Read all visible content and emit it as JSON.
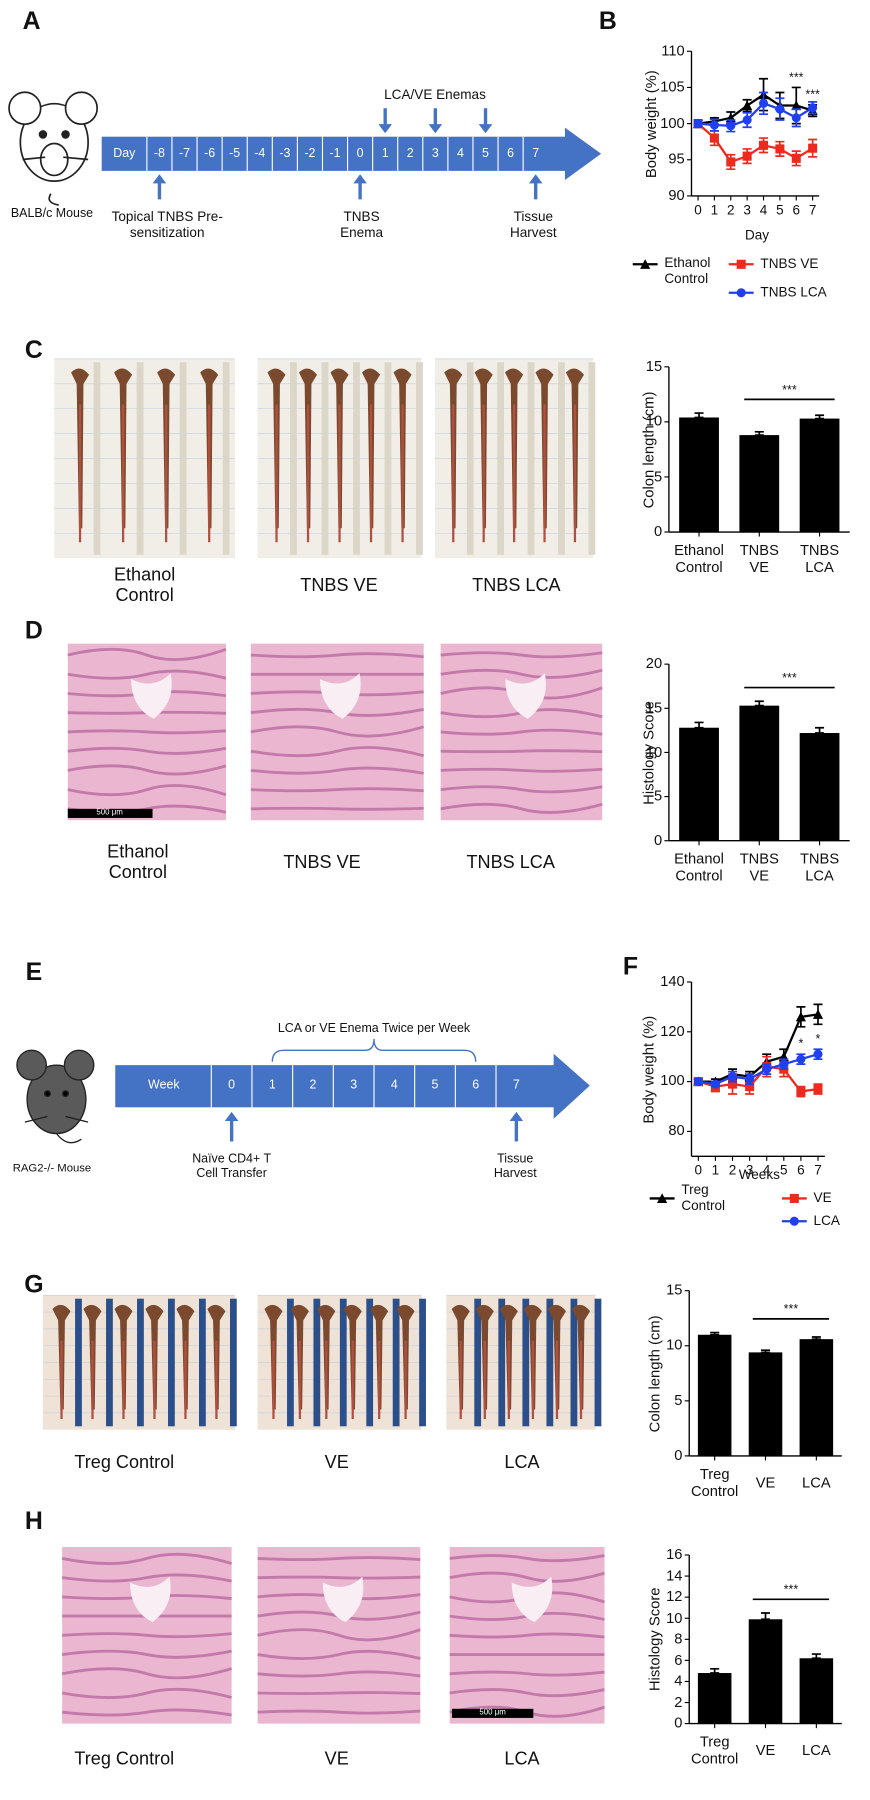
{
  "panel_labels": [
    "A",
    "B",
    "C",
    "D",
    "E",
    "F",
    "G",
    "H"
  ],
  "timeline_a": {
    "mouse": "BALB/c  Mouse",
    "cells": [
      "Day",
      "-8",
      "-7",
      "-6",
      "-5",
      "-4",
      "-3",
      "-2",
      "-1",
      "0",
      "1",
      "2",
      "3",
      "4",
      "5",
      "6",
      "7"
    ],
    "top_label": "LCA/VE  Enemas",
    "bottom_labels": [
      "Topical TNBS Pre-sensitization",
      "TNBS Enema",
      "Tissue Harvest"
    ]
  },
  "timeline_e": {
    "mouse": "RAG2-/- Mouse",
    "cells": [
      "Week",
      "0",
      "1",
      "2",
      "3",
      "4",
      "5",
      "6",
      "7"
    ],
    "bracket_label": "LCA or VE Enema Twice per Week",
    "bottom_labels": [
      "Naïve CD4+ T Cell Transfer",
      "Tissue Harvest"
    ]
  },
  "photos_c": {
    "captions": [
      "Ethanol Control",
      "TNBS VE",
      "TNBS LCA"
    ]
  },
  "photos_d": {
    "captions": [
      "Ethanol Control",
      "TNBS VE",
      "TNBS LCA"
    ],
    "scale_bar": "500 μm"
  },
  "photos_g": {
    "captions": [
      "Treg Control",
      "VE",
      "LCA"
    ]
  },
  "photos_h": {
    "captions": [
      "Treg Control",
      "VE",
      "LCA"
    ],
    "scale_bar": "500 μm"
  },
  "chart_data": [
    {
      "type": "line",
      "x": [
        0,
        1,
        2,
        3,
        4,
        5,
        6,
        7
      ],
      "xlim": [
        -0.4,
        7.4
      ],
      "xticks": [
        0,
        1,
        2,
        3,
        4,
        5,
        6,
        7
      ],
      "ylim": [
        90,
        110
      ],
      "yticks": [
        90,
        95,
        100,
        105,
        110
      ],
      "xlabel": "Day",
      "ylabel": "Body weight (%)",
      "series": [
        {
          "name": "Ethanol Control",
          "color": "#000000",
          "marker": "triangle",
          "values": [
            100,
            100.3,
            100.8,
            102.5,
            104,
            102.5,
            102.5,
            101.8
          ],
          "errors": [
            0.5,
            0.5,
            0.8,
            0.8,
            2.2,
            1.8,
            2.5,
            0.8
          ]
        },
        {
          "name": "TNBS VE",
          "color": "#ee2a1f",
          "marker": "square",
          "values": [
            100,
            98,
            94.7,
            95.5,
            97,
            96.5,
            95.2,
            96.6
          ],
          "errors": [
            0.5,
            1,
            1,
            1,
            1,
            1,
            1,
            1.2
          ]
        },
        {
          "name": "TNBS LCA",
          "color": "#1f3ff0",
          "marker": "circle",
          "values": [
            100,
            99.8,
            99.7,
            100.5,
            102.8,
            102,
            100.8,
            102.2
          ],
          "errors": [
            0.5,
            0.8,
            0.8,
            1,
            1.5,
            1.5,
            1.2,
            0.8
          ]
        }
      ],
      "annotations": [
        {
          "text": "***",
          "x": 6,
          "series": "Ethanol Control"
        },
        {
          "text": "***",
          "x": 7,
          "series": "Ethanol Control"
        }
      ]
    },
    {
      "type": "bar",
      "categories": [
        "Ethanol Control",
        "TNBS VE",
        "TNBS LCA"
      ],
      "values": [
        10.4,
        8.8,
        10.3
      ],
      "errors": [
        0.4,
        0.3,
        0.3
      ],
      "color": "#000000",
      "ylim": [
        0,
        15
      ],
      "yticks": [
        0,
        5,
        10,
        15
      ],
      "ylabel": "Colon length (cm)",
      "significance": {
        "text": "***",
        "between": [
          "TNBS VE",
          "TNBS LCA"
        ]
      }
    },
    {
      "type": "bar",
      "categories": [
        "Ethanol Control",
        "TNBS VE",
        "TNBS LCA"
      ],
      "values": [
        12.8,
        15.3,
        12.2
      ],
      "errors": [
        0.6,
        0.5,
        0.6
      ],
      "color": "#000000",
      "ylim": [
        0,
        20
      ],
      "yticks": [
        0,
        5,
        10,
        15,
        20
      ],
      "ylabel": "Histology Score",
      "significance": {
        "text": "***",
        "between": [
          "TNBS VE",
          "TNBS LCA"
        ]
      }
    },
    {
      "type": "line",
      "x": [
        0,
        1,
        2,
        3,
        4,
        5,
        6,
        7
      ],
      "xlim": [
        -0.4,
        7.4
      ],
      "xticks": [
        0,
        1,
        2,
        3,
        4,
        5,
        6,
        7
      ],
      "ylim": [
        70,
        140
      ],
      "yticks": [
        80,
        100,
        120,
        140
      ],
      "xlabel": "Weeks",
      "ylabel": "Body weight (%)",
      "series": [
        {
          "name": "Treg Control",
          "color": "#000000",
          "marker": "triangle",
          "values": [
            100,
            100,
            103,
            102,
            108,
            110,
            126,
            127
          ],
          "errors": [
            1,
            1,
            2,
            2,
            3,
            3,
            4,
            4
          ]
        },
        {
          "name": "VE",
          "color": "#ee2a1f",
          "marker": "square",
          "values": [
            100,
            98,
            99,
            98,
            106,
            105,
            96,
            97
          ],
          "errors": [
            1,
            2,
            4,
            3,
            4,
            3,
            2,
            2
          ]
        },
        {
          "name": "LCA",
          "color": "#1f3ff0",
          "marker": "circle",
          "values": [
            100,
            99,
            102,
            101,
            105,
            107,
            109,
            111
          ],
          "errors": [
            1,
            1,
            2,
            2,
            2,
            2,
            2,
            2
          ]
        }
      ],
      "annotations": [
        {
          "text": "*",
          "x": 6,
          "series": "LCA"
        },
        {
          "text": "*",
          "x": 7,
          "series": "LCA"
        }
      ]
    },
    {
      "type": "bar",
      "categories": [
        "Treg Control",
        "VE",
        "LCA"
      ],
      "values": [
        11,
        9.4,
        10.6
      ],
      "errors": [
        0.2,
        0.2,
        0.2
      ],
      "color": "#000000",
      "ylim": [
        0,
        15
      ],
      "yticks": [
        0,
        5,
        10,
        15
      ],
      "ylabel": "Colon length (cm)",
      "significance": {
        "text": "***",
        "between": [
          "VE",
          "LCA"
        ]
      }
    },
    {
      "type": "bar",
      "categories": [
        "Treg Control",
        "VE",
        "LCA"
      ],
      "values": [
        4.8,
        9.9,
        6.2
      ],
      "errors": [
        0.4,
        0.6,
        0.4
      ],
      "color": "#000000",
      "ylim": [
        0,
        16
      ],
      "yticks": [
        0,
        2,
        4,
        6,
        8,
        10,
        12,
        14,
        16
      ],
      "ylabel": "Histology Score",
      "significance": {
        "text": "***",
        "between": [
          "VE",
          "LCA"
        ]
      }
    }
  ]
}
